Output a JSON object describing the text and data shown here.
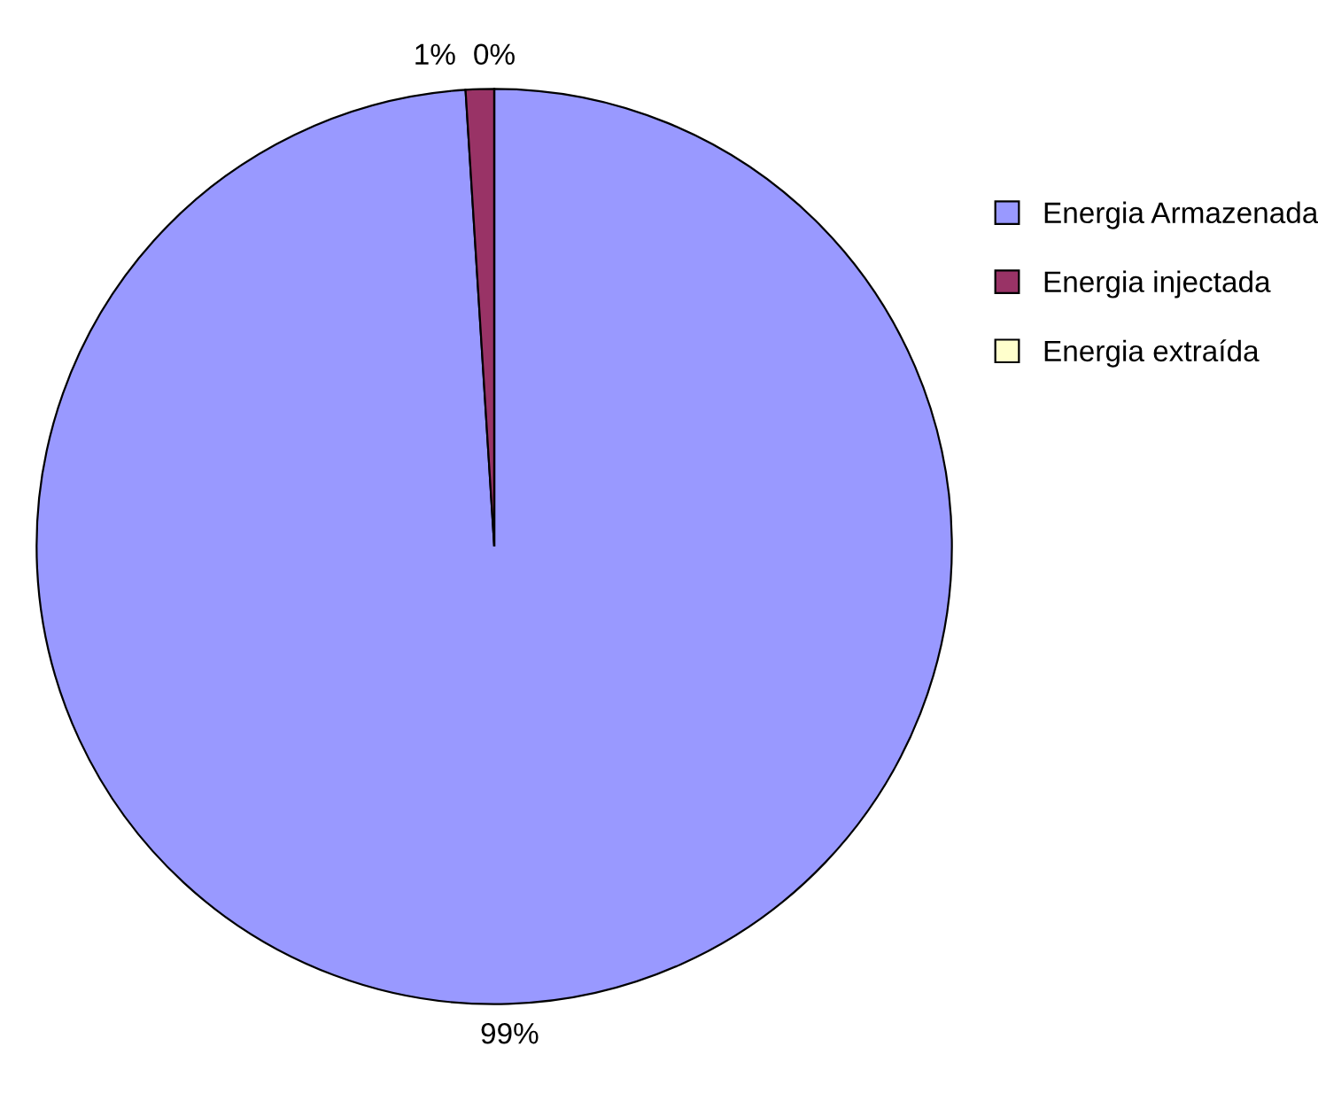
{
  "chart_data": {
    "type": "pie",
    "categories": [
      "Energia Armazenada",
      "Energia injectada",
      "Energia extraída"
    ],
    "values": [
      99,
      1,
      0
    ],
    "colors": [
      "#9999ff",
      "#993366",
      "#ffffcc"
    ],
    "value_labels": [
      "99%",
      "1%",
      "0%"
    ],
    "legend": "right"
  }
}
